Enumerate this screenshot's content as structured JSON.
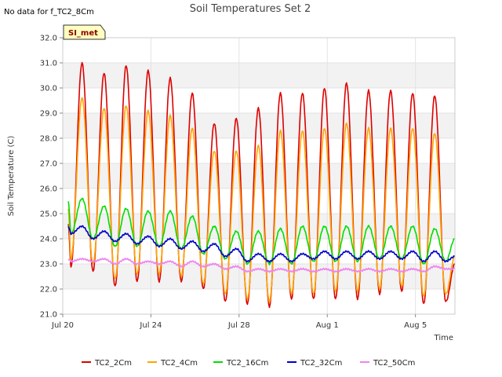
{
  "header": {
    "no_data_note": "No data for f_TC2_8Cm",
    "badge_label": "SI_met"
  },
  "chart_data": {
    "type": "line",
    "title": "Soil Temperatures Set 2",
    "xlabel": "Time",
    "ylabel": "Soil Temperature (C)",
    "ylim": [
      21.0,
      32.0
    ],
    "yticks": [
      21.0,
      22.0,
      23.0,
      24.0,
      25.0,
      26.0,
      27.0,
      28.0,
      29.0,
      30.0,
      31.0,
      32.0
    ],
    "ytick_labels": [
      "21.0",
      "22.0",
      "23.0",
      "24.0",
      "25.0",
      "26.0",
      "27.0",
      "28.0",
      "29.0",
      "30.0",
      "31.0",
      "32.0"
    ],
    "xlim": [
      "2024-07-20",
      "2024-08-06 19:00"
    ],
    "xticks": [
      "2024-07-20",
      "2024-07-24",
      "2024-07-28",
      "2024-08-01",
      "2024-08-05"
    ],
    "xtick_labels": [
      "Jul 20",
      "Jul 24",
      "Jul 28",
      "Aug 1",
      "Aug 5"
    ],
    "grid": true,
    "legend_position": "bottom",
    "daily_peak_times": [
      "2024-07-20 21:00",
      "2024-07-21 21:00",
      "2024-07-22 21:00",
      "2024-07-23 21:00",
      "2024-07-24 21:00",
      "2024-07-25 21:00",
      "2024-07-26 21:00",
      "2024-07-27 21:00",
      "2024-07-28 21:00",
      "2024-07-29 21:00",
      "2024-07-30 21:00",
      "2024-07-31 21:00",
      "2024-08-01 21:00",
      "2024-08-02 21:00",
      "2024-08-03 21:00",
      "2024-08-04 21:00",
      "2024-08-05 21:00",
      "2024-08-06 21:00"
    ],
    "series": [
      {
        "name": "TC2_2Cm",
        "color": "#dd0000",
        "start": {
          "x": "2024-07-20 06:00",
          "y": 24.6
        },
        "end": {
          "x": "2024-08-06 19:00",
          "y": 23.0
        },
        "daily_max": [
          31.0,
          30.6,
          30.9,
          30.7,
          30.4,
          29.8,
          28.6,
          28.8,
          29.2,
          29.8,
          29.8,
          30.0,
          30.2,
          29.9,
          29.9,
          29.8,
          29.7,
          29.1
        ],
        "daily_min": [
          22.9,
          22.7,
          22.1,
          22.3,
          22.3,
          22.3,
          22.0,
          21.5,
          21.4,
          21.3,
          21.6,
          21.6,
          21.6,
          21.6,
          21.8,
          21.9,
          21.4,
          21.5
        ]
      },
      {
        "name": "TC2_4Cm",
        "color": "#ffa500",
        "start": {
          "x": "2024-07-20 06:00",
          "y": 25.2
        },
        "end": {
          "x": "2024-08-06 19:00",
          "y": 23.3
        },
        "daily_max": [
          29.6,
          29.2,
          29.3,
          29.1,
          28.9,
          28.4,
          27.5,
          27.5,
          27.7,
          28.3,
          28.3,
          28.4,
          28.6,
          28.4,
          28.4,
          28.4,
          28.2,
          27.7
        ],
        "daily_min": [
          23.2,
          23.0,
          22.4,
          22.6,
          22.6,
          22.5,
          22.2,
          21.8,
          21.6,
          21.5,
          21.8,
          21.8,
          21.9,
          21.9,
          22.0,
          22.1,
          21.7,
          21.8
        ]
      },
      {
        "name": "TC2_16Cm",
        "color": "#00dd00",
        "start": {
          "x": "2024-07-20 06:00",
          "y": 25.5
        },
        "end": {
          "x": "2024-08-06 19:00",
          "y": 24.0
        },
        "daily_max": [
          25.6,
          25.3,
          25.2,
          25.1,
          25.1,
          24.9,
          24.5,
          24.3,
          24.3,
          24.4,
          24.5,
          24.5,
          24.5,
          24.5,
          24.5,
          24.5,
          24.4,
          24.2
        ],
        "daily_min": [
          24.2,
          24.0,
          23.7,
          23.7,
          23.7,
          23.6,
          23.4,
          23.2,
          23.0,
          23.0,
          23.0,
          23.1,
          23.1,
          23.1,
          23.2,
          23.2,
          23.0,
          23.1
        ]
      },
      {
        "name": "TC2_32Cm",
        "color": "#0000cc",
        "start": {
          "x": "2024-07-20 06:00",
          "y": 24.5
        },
        "end": {
          "x": "2024-08-06 19:00",
          "y": 23.3
        },
        "daily_max": [
          24.5,
          24.3,
          24.2,
          24.1,
          24.0,
          23.9,
          23.8,
          23.6,
          23.4,
          23.4,
          23.4,
          23.5,
          23.5,
          23.5,
          23.5,
          23.5,
          23.5,
          23.4
        ],
        "daily_min": [
          24.2,
          24.0,
          23.9,
          23.8,
          23.7,
          23.6,
          23.5,
          23.3,
          23.1,
          23.1,
          23.1,
          23.2,
          23.2,
          23.2,
          23.2,
          23.2,
          23.1,
          23.1
        ]
      },
      {
        "name": "TC2_50Cm",
        "color": "#ee82ee",
        "start": {
          "x": "2024-07-20 06:00",
          "y": 23.2
        },
        "end": {
          "x": "2024-08-06 19:00",
          "y": 22.8
        },
        "daily_max": [
          23.2,
          23.2,
          23.2,
          23.1,
          23.1,
          23.1,
          23.0,
          22.9,
          22.8,
          22.8,
          22.8,
          22.8,
          22.8,
          22.8,
          22.8,
          22.8,
          22.9,
          22.9
        ],
        "daily_min": [
          23.1,
          23.1,
          23.0,
          23.0,
          23.0,
          22.9,
          22.9,
          22.8,
          22.7,
          22.7,
          22.7,
          22.7,
          22.7,
          22.7,
          22.7,
          22.7,
          22.7,
          22.8
        ]
      }
    ]
  }
}
